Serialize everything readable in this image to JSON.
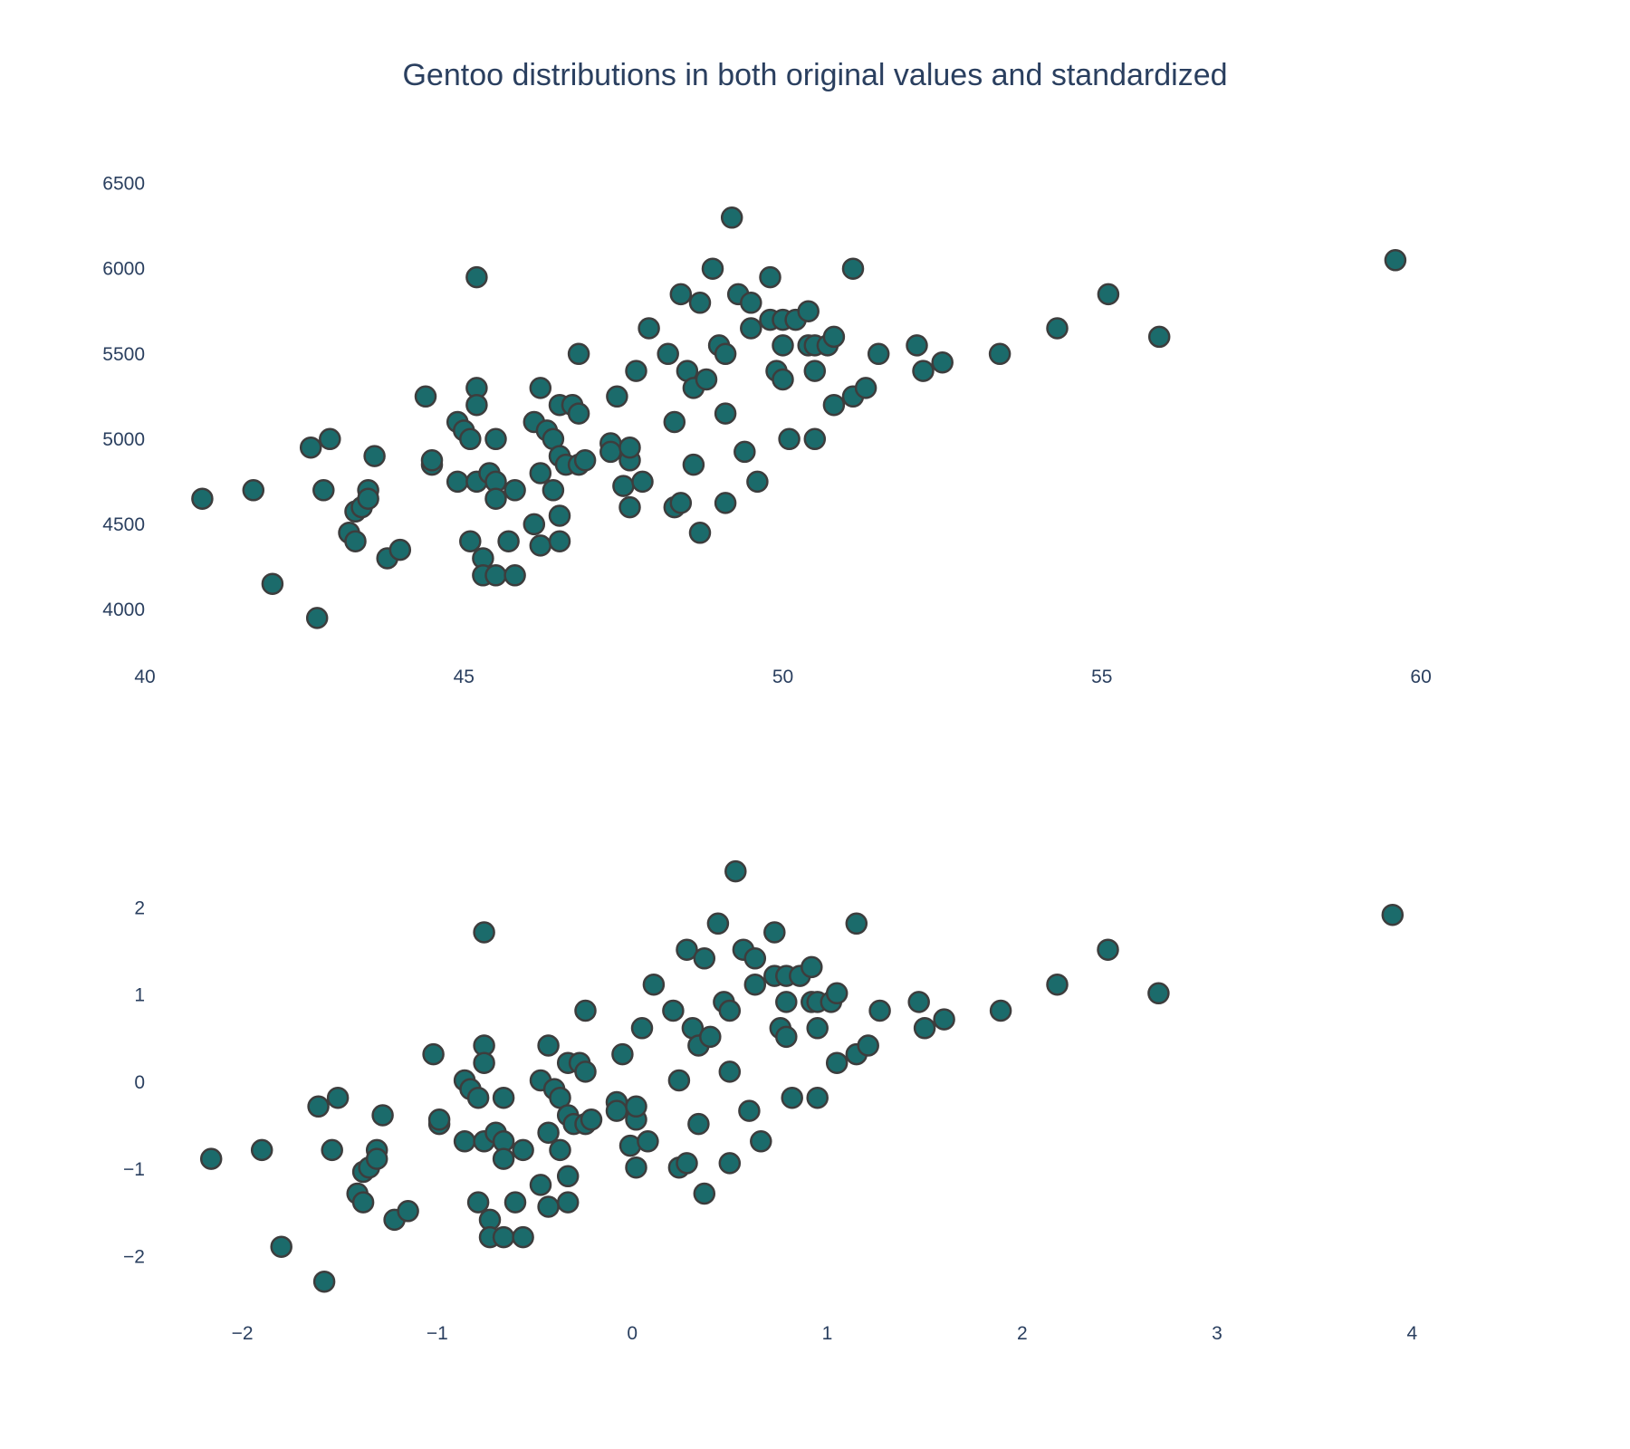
{
  "chart_data": [
    {
      "type": "scatter",
      "title": "Gentoo distributions in both original values and standardized",
      "xlabel": "",
      "ylabel": "",
      "xlim": [
        40,
        62
      ],
      "ylim": [
        3750,
        6700
      ],
      "x_ticks": [
        "40",
        "45",
        "50",
        "55",
        "60"
      ],
      "y_ticks": [
        "4000",
        "4500",
        "5000",
        "5500",
        "6000",
        "6500"
      ],
      "grid": false,
      "marker_color": "#1b6b6b",
      "marker_edge_color": "#3d3d3d",
      "points": [
        [
          40.9,
          4650
        ],
        [
          41.7,
          4700
        ],
        [
          42.0,
          4150
        ],
        [
          42.6,
          4950
        ],
        [
          42.7,
          3950
        ],
        [
          42.8,
          4700
        ],
        [
          42.9,
          5000
        ],
        [
          43.2,
          4450
        ],
        [
          43.3,
          4575
        ],
        [
          43.3,
          4400
        ],
        [
          43.4,
          4600
        ],
        [
          43.5,
          4700
        ],
        [
          43.5,
          4650
        ],
        [
          43.6,
          4900
        ],
        [
          43.8,
          4300
        ],
        [
          44.0,
          4350
        ],
        [
          44.4,
          5250
        ],
        [
          44.5,
          4850
        ],
        [
          44.5,
          4875
        ],
        [
          44.9,
          4750
        ],
        [
          44.9,
          5100
        ],
        [
          45.0,
          5050
        ],
        [
          45.1,
          5000
        ],
        [
          45.1,
          4400
        ],
        [
          45.2,
          4750
        ],
        [
          45.2,
          5950
        ],
        [
          45.2,
          5300
        ],
        [
          45.2,
          5200
        ],
        [
          45.3,
          4300
        ],
        [
          45.3,
          4200
        ],
        [
          45.4,
          4800
        ],
        [
          45.5,
          4750
        ],
        [
          45.5,
          4650
        ],
        [
          45.5,
          4200
        ],
        [
          45.5,
          5000
        ],
        [
          45.7,
          4400
        ],
        [
          45.8,
          4700
        ],
        [
          45.8,
          4200
        ],
        [
          46.1,
          5100
        ],
        [
          46.1,
          4500
        ],
        [
          46.2,
          4375
        ],
        [
          46.2,
          4800
        ],
        [
          46.2,
          5300
        ],
        [
          46.3,
          5050
        ],
        [
          46.4,
          4700
        ],
        [
          46.4,
          5000
        ],
        [
          46.5,
          4550
        ],
        [
          46.5,
          4400
        ],
        [
          46.5,
          4900
        ],
        [
          46.5,
          5200
        ],
        [
          46.6,
          4850
        ],
        [
          46.7,
          5200
        ],
        [
          46.8,
          5150
        ],
        [
          46.8,
          5500
        ],
        [
          46.8,
          4850
        ],
        [
          46.9,
          4875
        ],
        [
          47.3,
          4975
        ],
        [
          47.3,
          4925
        ],
        [
          47.4,
          5250
        ],
        [
          47.5,
          4725
        ],
        [
          47.6,
          4600
        ],
        [
          47.6,
          4875
        ],
        [
          47.6,
          4950
        ],
        [
          47.7,
          5400
        ],
        [
          47.8,
          4750
        ],
        [
          47.9,
          5650
        ],
        [
          48.2,
          5500
        ],
        [
          48.3,
          5100
        ],
        [
          48.3,
          4600
        ],
        [
          48.4,
          5850
        ],
        [
          48.4,
          4625
        ],
        [
          48.5,
          5400
        ],
        [
          48.6,
          5300
        ],
        [
          48.6,
          4850
        ],
        [
          48.7,
          5800
        ],
        [
          48.7,
          4450
        ],
        [
          48.8,
          5350
        ],
        [
          48.9,
          6000
        ],
        [
          49.0,
          5550
        ],
        [
          49.1,
          5500
        ],
        [
          49.1,
          4625
        ],
        [
          49.1,
          5150
        ],
        [
          49.2,
          6300
        ],
        [
          49.3,
          5850
        ],
        [
          49.4,
          4925
        ],
        [
          49.5,
          5800
        ],
        [
          49.5,
          5650
        ],
        [
          49.6,
          4750
        ],
        [
          49.8,
          5950
        ],
        [
          49.8,
          5700
        ],
        [
          49.9,
          5400
        ],
        [
          50.0,
          5550
        ],
        [
          50.0,
          5350
        ],
        [
          50.0,
          5700
        ],
        [
          50.1,
          5000
        ],
        [
          50.2,
          5700
        ],
        [
          50.4,
          5550
        ],
        [
          50.4,
          5750
        ],
        [
          50.5,
          5550
        ],
        [
          50.5,
          5000
        ],
        [
          50.5,
          5400
        ],
        [
          50.7,
          5550
        ],
        [
          50.8,
          5600
        ],
        [
          50.8,
          5200
        ],
        [
          51.1,
          6000
        ],
        [
          51.1,
          5250
        ],
        [
          51.3,
          5300
        ],
        [
          51.5,
          5500
        ],
        [
          52.1,
          5550
        ],
        [
          52.2,
          5400
        ],
        [
          52.5,
          5450
        ],
        [
          53.4,
          5500
        ],
        [
          54.3,
          5650
        ],
        [
          55.1,
          5850
        ],
        [
          55.9,
          5600
        ],
        [
          59.6,
          6050
        ]
      ]
    },
    {
      "type": "scatter",
      "title": "",
      "xlabel": "",
      "ylabel": "",
      "xlim": [
        -2.5,
        4.7
      ],
      "ylim": [
        -2.6,
        2.65
      ],
      "x_ticks": [
        "−2",
        "−1",
        "0",
        "1",
        "2",
        "3",
        "4"
      ],
      "y_ticks": [
        "−2",
        "−1",
        "0",
        "1",
        "2"
      ],
      "grid": false,
      "marker_color": "#1b6b6b",
      "marker_edge_color": "#3d3d3d",
      "points": [
        [
          -2.16,
          -0.88
        ],
        [
          -1.9,
          -0.78
        ],
        [
          -1.8,
          -1.89
        ],
        [
          -1.61,
          -0.28
        ],
        [
          -1.58,
          -2.29
        ],
        [
          -1.54,
          -0.78
        ],
        [
          -1.51,
          -0.18
        ],
        [
          -1.41,
          -1.28
        ],
        [
          -1.38,
          -1.03
        ],
        [
          -1.38,
          -1.38
        ],
        [
          -1.35,
          -0.98
        ],
        [
          -1.31,
          -0.78
        ],
        [
          -1.31,
          -0.88
        ],
        [
          -1.28,
          -0.38
        ],
        [
          -1.22,
          -1.58
        ],
        [
          -1.15,
          -1.48
        ],
        [
          -1.02,
          0.32
        ],
        [
          -0.99,
          -0.48
        ],
        [
          -0.99,
          -0.43
        ],
        [
          -0.86,
          -0.68
        ],
        [
          -0.86,
          0.02
        ],
        [
          -0.83,
          -0.08
        ],
        [
          -0.79,
          -0.18
        ],
        [
          -0.79,
          -1.38
        ],
        [
          -0.76,
          -0.68
        ],
        [
          -0.76,
          1.72
        ],
        [
          -0.76,
          0.42
        ],
        [
          -0.76,
          0.22
        ],
        [
          -0.73,
          -1.58
        ],
        [
          -0.73,
          -1.78
        ],
        [
          -0.7,
          -0.58
        ],
        [
          -0.66,
          -0.68
        ],
        [
          -0.66,
          -0.88
        ],
        [
          -0.66,
          -1.78
        ],
        [
          -0.66,
          -0.18
        ],
        [
          -0.6,
          -1.38
        ],
        [
          -0.56,
          -0.78
        ],
        [
          -0.56,
          -1.78
        ],
        [
          -0.47,
          0.02
        ],
        [
          -0.47,
          -1.18
        ],
        [
          -0.43,
          -1.43
        ],
        [
          -0.43,
          -0.58
        ],
        [
          -0.43,
          0.42
        ],
        [
          -0.4,
          -0.08
        ],
        [
          -0.37,
          -0.78
        ],
        [
          -0.37,
          -0.18
        ],
        [
          -0.33,
          -1.08
        ],
        [
          -0.33,
          -1.38
        ],
        [
          -0.33,
          -0.38
        ],
        [
          -0.33,
          0.22
        ],
        [
          -0.3,
          -0.48
        ],
        [
          -0.27,
          0.22
        ],
        [
          -0.24,
          0.12
        ],
        [
          -0.24,
          0.82
        ],
        [
          -0.24,
          -0.48
        ],
        [
          -0.21,
          -0.43
        ],
        [
          -0.08,
          -0.23
        ],
        [
          -0.08,
          -0.33
        ],
        [
          -0.05,
          0.32
        ],
        [
          -0.01,
          -0.73
        ],
        [
          0.02,
          -0.98
        ],
        [
          0.02,
          -0.43
        ],
        [
          0.02,
          -0.28
        ],
        [
          0.05,
          0.62
        ],
        [
          0.08,
          -0.68
        ],
        [
          0.11,
          1.12
        ],
        [
          0.21,
          0.82
        ],
        [
          0.24,
          0.02
        ],
        [
          0.24,
          -0.98
        ],
        [
          0.28,
          1.52
        ],
        [
          0.28,
          -0.93
        ],
        [
          0.31,
          0.62
        ],
        [
          0.34,
          0.42
        ],
        [
          0.34,
          -0.48
        ],
        [
          0.37,
          1.42
        ],
        [
          0.37,
          -1.28
        ],
        [
          0.4,
          0.52
        ],
        [
          0.44,
          1.82
        ],
        [
          0.47,
          0.92
        ],
        [
          0.5,
          0.82
        ],
        [
          0.5,
          -0.93
        ],
        [
          0.5,
          0.12
        ],
        [
          0.53,
          2.42
        ],
        [
          0.57,
          1.52
        ],
        [
          0.6,
          -0.33
        ],
        [
          0.63,
          1.42
        ],
        [
          0.63,
          1.12
        ],
        [
          0.66,
          -0.68
        ],
        [
          0.73,
          1.72
        ],
        [
          0.73,
          1.22
        ],
        [
          0.76,
          0.62
        ],
        [
          0.79,
          0.92
        ],
        [
          0.79,
          0.52
        ],
        [
          0.79,
          1.22
        ],
        [
          0.82,
          -0.18
        ],
        [
          0.86,
          1.22
        ],
        [
          0.92,
          0.92
        ],
        [
          0.92,
          1.32
        ],
        [
          0.95,
          0.92
        ],
        [
          0.95,
          -0.18
        ],
        [
          0.95,
          0.62
        ],
        [
          1.02,
          0.92
        ],
        [
          1.05,
          1.02
        ],
        [
          1.05,
          0.22
        ],
        [
          1.15,
          1.82
        ],
        [
          1.15,
          0.32
        ],
        [
          1.21,
          0.42
        ],
        [
          1.27,
          0.82
        ],
        [
          1.47,
          0.92
        ],
        [
          1.5,
          0.62
        ],
        [
          1.6,
          0.72
        ],
        [
          1.89,
          0.82
        ],
        [
          2.18,
          1.12
        ],
        [
          2.44,
          1.52
        ],
        [
          2.7,
          1.02
        ],
        [
          3.9,
          1.92
        ]
      ]
    }
  ]
}
